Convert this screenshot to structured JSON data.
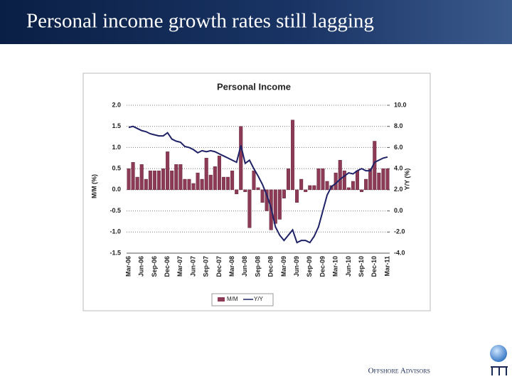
{
  "chart_data": {
    "type": "bar",
    "slide_title": "Personal income growth rates still lagging",
    "title": "Personal Income",
    "ylabel": "M/M (%)",
    "y2label": "Y/Y (%)",
    "categories": [
      "Mar-06",
      null,
      null,
      "Jun-06",
      null,
      null,
      "Sep-06",
      null,
      null,
      "Dec-06",
      null,
      null,
      "Mar-07",
      null,
      null,
      "Jun-07",
      null,
      null,
      "Sep-07",
      null,
      null,
      "Dec-07",
      null,
      null,
      "Mar-08",
      null,
      null,
      "Jun-08",
      null,
      null,
      "Sep-08",
      null,
      null,
      "Dec-08",
      null,
      null,
      "Mar-09",
      null,
      null,
      "Jun-09",
      null,
      null,
      "Sep-09",
      null,
      null,
      "Dec-09",
      null,
      null,
      "Mar-10",
      null,
      null,
      "Jun-10",
      null,
      null,
      "Sep-10",
      null,
      null,
      "Dec-10",
      null,
      null,
      "Mar-11"
    ],
    "series": [
      {
        "name": "M/M",
        "type": "bar",
        "color": "#8c3a55",
        "values": [
          0.5,
          0.65,
          0.3,
          0.6,
          0.25,
          0.45,
          0.45,
          0.45,
          0.5,
          0.9,
          0.45,
          0.6,
          0.6,
          0.25,
          0.25,
          0.15,
          0.4,
          0.25,
          0.75,
          0.35,
          0.55,
          0.8,
          0.3,
          0.3,
          0.45,
          -0.1,
          1.5,
          -0.05,
          -0.9,
          0.45,
          0.05,
          -0.3,
          -0.5,
          -0.95,
          -0.8,
          -0.7,
          -0.2,
          0.5,
          1.65,
          -0.3,
          0.25,
          -0.05,
          0.1,
          0.1,
          0.5,
          0.5,
          0.2,
          0.1,
          0.4,
          0.7,
          0.45,
          0.05,
          0.2,
          0.45,
          -0.05,
          0.25,
          0.5,
          1.15,
          0.4,
          0.5,
          0.5
        ]
      },
      {
        "name": "Y/Y",
        "type": "line",
        "axis": "y2",
        "color": "#1f2266",
        "values": [
          7.9,
          8.0,
          7.8,
          7.6,
          7.5,
          7.3,
          7.2,
          7.1,
          7.1,
          7.4,
          6.8,
          6.6,
          6.5,
          6.1,
          6.0,
          5.8,
          5.5,
          5.7,
          5.6,
          5.7,
          5.6,
          5.4,
          5.2,
          5.0,
          4.8,
          4.6,
          6.2,
          4.5,
          4.8,
          4.0,
          3.3,
          2.5,
          1.5,
          0.3,
          -1.5,
          -2.3,
          -2.8,
          -2.3,
          -1.8,
          -3.0,
          -2.8,
          -2.8,
          -3.0,
          -2.4,
          -1.5,
          0.0,
          1.5,
          2.3,
          2.6,
          3.0,
          3.3,
          3.6,
          3.5,
          3.8,
          4.0,
          3.8,
          3.8,
          4.6,
          4.8,
          5.0,
          5.1
        ]
      }
    ],
    "ylim": [
      -1.5,
      2.0
    ],
    "yticks": [
      {
        "value": -1.5,
        "label": "-1.5"
      },
      {
        "value": -1,
        "label": "-1.0"
      },
      {
        "value": -0.5,
        "label": "-0.5"
      },
      {
        "value": 0,
        "label": "0.0"
      },
      0.5,
      {
        "value": 1,
        "label": "1.0"
      },
      1.5,
      {
        "value": 2,
        "label": "2.0"
      }
    ],
    "y2lim": [
      -4,
      10
    ],
    "y2ticks": [
      {
        "value": -4,
        "label": "-4.0"
      },
      {
        "value": -2,
        "label": "-2.0"
      },
      {
        "value": 0,
        "label": "0.0"
      },
      {
        "value": 2,
        "label": "2.0"
      },
      {
        "value": 4,
        "label": "4.0"
      },
      {
        "value": 6,
        "label": "6.0"
      },
      {
        "value": 8,
        "label": "8.0"
      },
      {
        "value": 10,
        "label": "10.0"
      }
    ],
    "grid": true,
    "legend": "bottom",
    "footer": "Offshore Advisors"
  }
}
